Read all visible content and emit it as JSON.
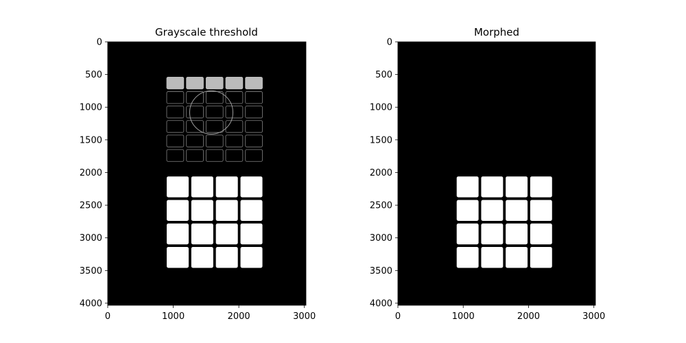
{
  "chart_data": [
    {
      "type": "heatmap",
      "title": "Grayscale threshold",
      "xlim": [
        0,
        3024
      ],
      "ylim": [
        4032,
        0
      ],
      "xticks": [
        0,
        1000,
        2000,
        3000
      ],
      "yticks": [
        0,
        500,
        1000,
        1500,
        2000,
        2500,
        3000,
        3500,
        4000
      ],
      "colormap": {
        "background": "#000000",
        "foreground": "#ffffff"
      },
      "upper_grid_outline": {
        "x_range": [
          880,
          2380
        ],
        "y_range": [
          520,
          1850
        ],
        "columns": 5,
        "rows": 6
      },
      "circle_outline": {
        "cx": 1580,
        "cy": 1080,
        "r": 330
      },
      "lower_grid_tiles": {
        "x_range": [
          880,
          2380
        ],
        "y_range": [
          2040,
          3480
        ],
        "columns": 4,
        "rows": 4,
        "gap": 40
      }
    },
    {
      "type": "heatmap",
      "title": "Morphed",
      "xlim": [
        0,
        3024
      ],
      "ylim": [
        4032,
        0
      ],
      "xticks": [
        0,
        1000,
        2000,
        3000
      ],
      "yticks": [
        0,
        500,
        1000,
        1500,
        2000,
        2500,
        3000,
        3500,
        4000
      ],
      "colormap": {
        "background": "#000000",
        "foreground": "#ffffff"
      },
      "lower_grid_tiles": {
        "x_range": [
          880,
          2380
        ],
        "y_range": [
          2040,
          3480
        ],
        "columns": 4,
        "rows": 4,
        "gap": 40
      }
    }
  ]
}
